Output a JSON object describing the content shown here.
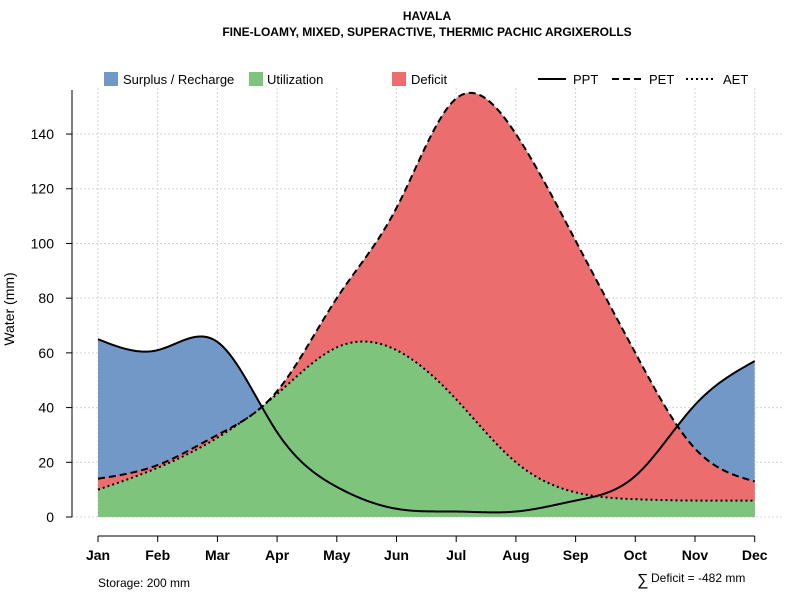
{
  "chart_data": {
    "type": "area",
    "title": "HAVALA",
    "subtitle": "FINE-LOAMY, MIXED, SUPERACTIVE, THERMIC PACHIC ARGIXEROLLS",
    "xlabel": "",
    "ylabel": "Water (mm)",
    "categories": [
      "Jan",
      "Feb",
      "Mar",
      "Apr",
      "May",
      "Jun",
      "Jul",
      "Aug",
      "Sep",
      "Oct",
      "Nov",
      "Dec"
    ],
    "ylim": [
      0,
      155
    ],
    "yticks": [
      0,
      20,
      40,
      60,
      80,
      100,
      120,
      140
    ],
    "grid": true,
    "legend_position": "top",
    "series": [
      {
        "name": "PPT",
        "style": "solid",
        "values": [
          65,
          61,
          64,
          31,
          11,
          3,
          2,
          2,
          6,
          15,
          41,
          57
        ]
      },
      {
        "name": "PET",
        "style": "dashed",
        "values": [
          14,
          19,
          30,
          46,
          80,
          113,
          153,
          140,
          101,
          60,
          25,
          13
        ]
      },
      {
        "name": "AET",
        "style": "dotted",
        "values": [
          10,
          18,
          29,
          45,
          62,
          61,
          43,
          20,
          9,
          6.5,
          6,
          6
        ]
      }
    ],
    "legend": {
      "surplus": "Surplus / Recharge",
      "utilization": "Utilization",
      "deficit": "Deficit",
      "ppt": "PPT",
      "pet": "PET",
      "aet": "AET"
    },
    "colors": {
      "surplus": "#7298c8",
      "utilization": "#7fc47c",
      "deficit": "#ec6d6d",
      "line": "#000000"
    },
    "annotations": {
      "storage": "Storage: 200 mm",
      "deficit_symbol": "∑",
      "deficit_total": "Deficit = -482 mm"
    }
  }
}
